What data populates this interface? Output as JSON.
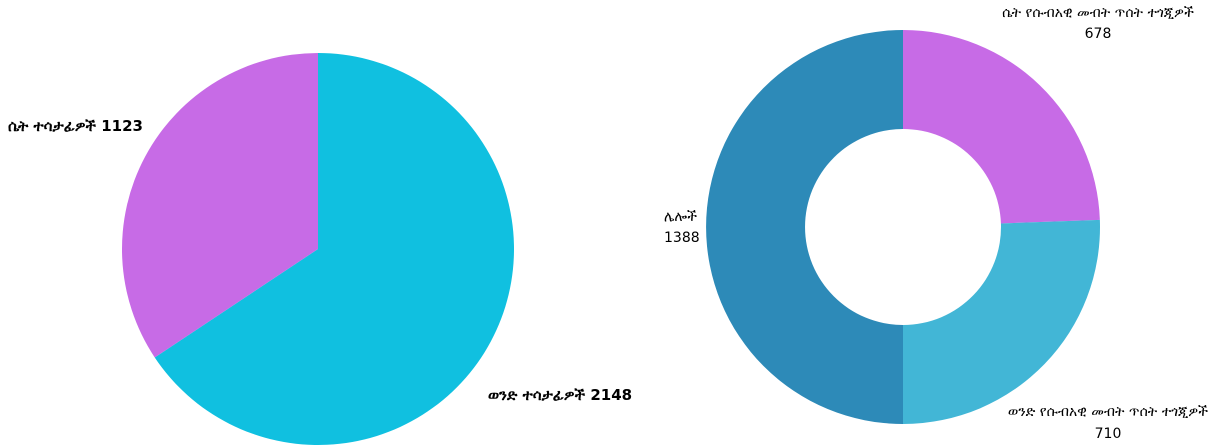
{
  "chart_data": [
    {
      "type": "pie",
      "labels": [
        {
          "name": "ወንድ ተሳታፊዎች",
          "value_text": "2148"
        },
        {
          "name": "ሴት ተሳታፊዎች",
          "value_text": "1123"
        }
      ],
      "slices": [
        {
          "name": "ወንድ ተሳታፊዎች",
          "value": 2148,
          "color": "#10C0E0"
        },
        {
          "name": "ሴት ተሳታፊዎች",
          "value": 1123,
          "color": "#C76BE6"
        }
      ]
    },
    {
      "type": "donut",
      "labels": [
        {
          "name": "ሴት የሱብአዊ መብት ጥሰት ተጎጂዎች",
          "value_text": "678"
        },
        {
          "name": "ወንድ የሱብአዊ መብት ጥሰት ተጎጂዎች",
          "value_text": "710"
        },
        {
          "name": "ሌሎች",
          "value_text": "1388"
        }
      ],
      "slices": [
        {
          "name": "ሴት የሱብአዊ መብት ጥሰት ተጎጂዎች",
          "value": 678,
          "color": "#C76BE6"
        },
        {
          "name": "ወንድ የሱብአዊ መብት ጥሰት ተጎጂዎች",
          "value": 710,
          "color": "#42B6D6"
        },
        {
          "name": "ሌሎች",
          "value": 1388,
          "color": "#2D8AB8"
        }
      ]
    }
  ]
}
